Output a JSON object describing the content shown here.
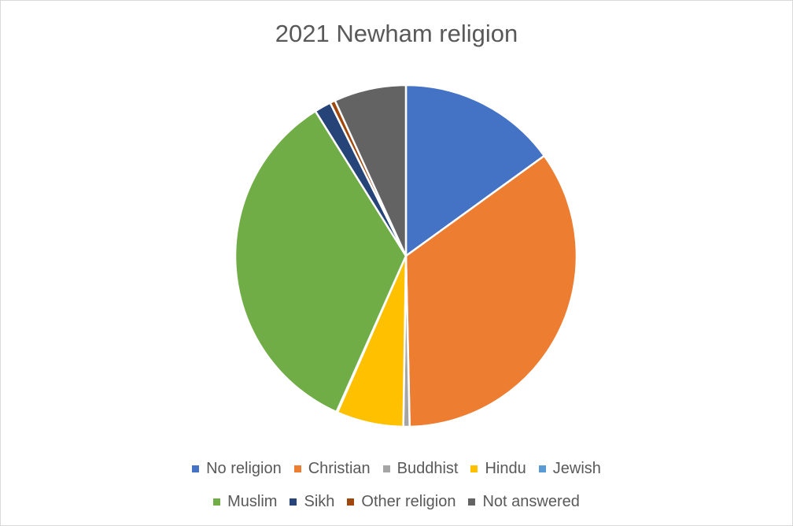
{
  "chart_data": {
    "type": "pie",
    "title": "2021 Newham religion",
    "categories": [
      "No religion",
      "Christian",
      "Buddhist",
      "Hindu",
      "Jewish",
      "Muslim",
      "Sikh",
      "Other religion",
      "Not answered"
    ],
    "values": [
      15.2,
      35.0,
      0.6,
      6.4,
      0.1,
      34.8,
      1.6,
      0.5,
      6.9
    ],
    "unit": "%",
    "colors": [
      "#4472C4",
      "#ED7D31",
      "#A5A5A5",
      "#FFC000",
      "#5B9BD5",
      "#70AD47",
      "#264478",
      "#9E480E",
      "#636363"
    ],
    "legend_position": "bottom",
    "start_angle": "12 o'clock",
    "direction": "clockwise"
  }
}
